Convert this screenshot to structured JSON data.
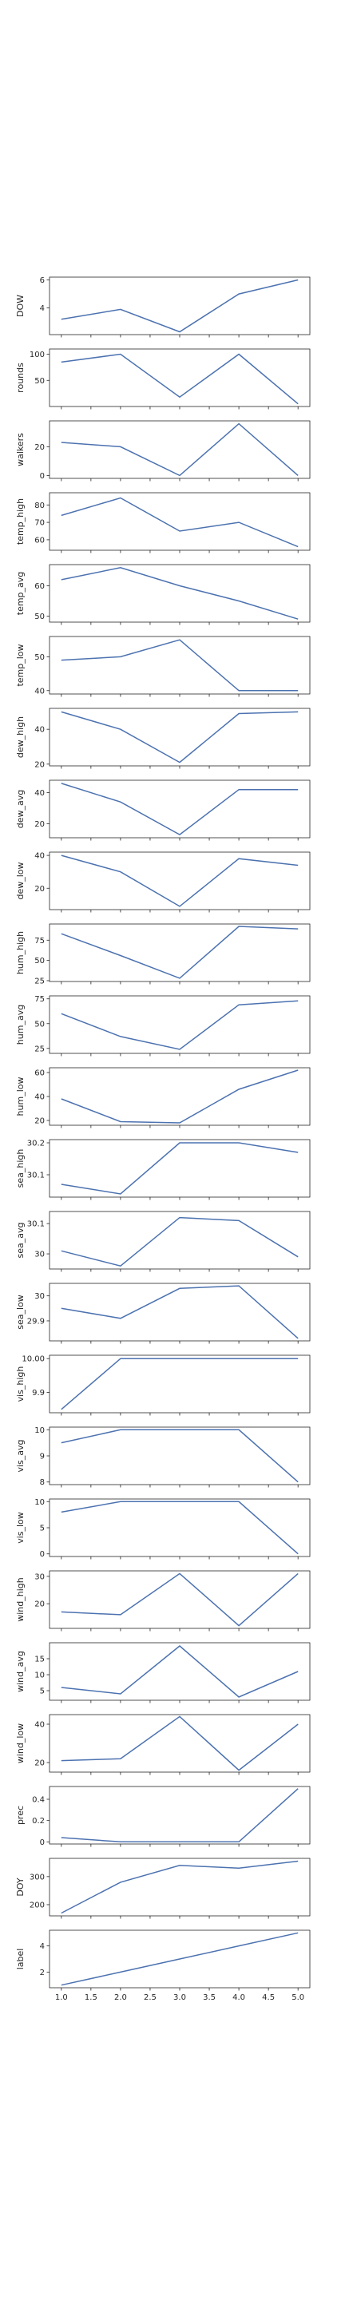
{
  "chart_data": [
    {
      "type": "line",
      "ylabel": "DOW",
      "x": [
        1,
        2,
        3,
        4,
        5
      ],
      "y": [
        3.2,
        3.9,
        2.3,
        5.0,
        6.0
      ],
      "xlim": [
        0.8,
        5.2
      ],
      "ylim": [
        2.1,
        6.2
      ],
      "yticks": [
        4,
        6
      ],
      "x_ticklabels_visible": false
    },
    {
      "type": "line",
      "ylabel": "rounds",
      "x": [
        1,
        2,
        3,
        4,
        5
      ],
      "y": [
        85,
        100,
        18,
        100,
        5
      ],
      "xlim": [
        0.8,
        5.2
      ],
      "ylim": [
        0,
        110
      ],
      "yticks": [
        50,
        100
      ],
      "x_ticklabels_visible": false
    },
    {
      "type": "line",
      "ylabel": "walkers",
      "x": [
        1,
        2,
        3,
        4,
        5
      ],
      "y": [
        23,
        20,
        0,
        36,
        0
      ],
      "xlim": [
        0.8,
        5.2
      ],
      "ylim": [
        -2,
        38
      ],
      "yticks": [
        0,
        20
      ],
      "x_ticklabels_visible": false
    },
    {
      "type": "line",
      "ylabel": "temp_high",
      "x": [
        1,
        2,
        3,
        4,
        5
      ],
      "y": [
        74,
        84,
        65,
        70,
        56
      ],
      "xlim": [
        0.8,
        5.2
      ],
      "ylim": [
        54,
        87
      ],
      "yticks": [
        60,
        70,
        80
      ],
      "x_ticklabels_visible": false
    },
    {
      "type": "line",
      "ylabel": "temp_avg",
      "x": [
        1,
        2,
        3,
        4,
        5
      ],
      "y": [
        62,
        66,
        60,
        55,
        49
      ],
      "xlim": [
        0.8,
        5.2
      ],
      "ylim": [
        48,
        67
      ],
      "yticks": [
        50,
        60
      ],
      "x_ticklabels_visible": false
    },
    {
      "type": "line",
      "ylabel": "temp_low",
      "x": [
        1,
        2,
        3,
        4,
        5
      ],
      "y": [
        49,
        50,
        55,
        40,
        40
      ],
      "xlim": [
        0.8,
        5.2
      ],
      "ylim": [
        39,
        56
      ],
      "yticks": [
        40,
        50
      ],
      "x_ticklabels_visible": false
    },
    {
      "type": "line",
      "ylabel": "dew_high",
      "x": [
        1,
        2,
        3,
        4,
        5
      ],
      "y": [
        50,
        40,
        21,
        49,
        50
      ],
      "xlim": [
        0.8,
        5.2
      ],
      "ylim": [
        19,
        52
      ],
      "yticks": [
        20,
        40
      ],
      "x_ticklabels_visible": false
    },
    {
      "type": "line",
      "ylabel": "dew_avg",
      "x": [
        1,
        2,
        3,
        4,
        5
      ],
      "y": [
        46,
        34,
        13,
        42,
        42
      ],
      "xlim": [
        0.8,
        5.2
      ],
      "ylim": [
        11,
        48
      ],
      "yticks": [
        20,
        40
      ],
      "x_ticklabels_visible": false
    },
    {
      "type": "line",
      "ylabel": "dew_low",
      "x": [
        1,
        2,
        3,
        4,
        5
      ],
      "y": [
        40,
        30,
        9,
        38,
        34
      ],
      "xlim": [
        0.8,
        5.2
      ],
      "ylim": [
        7,
        42
      ],
      "yticks": [
        20,
        40
      ],
      "x_ticklabels_visible": false
    },
    {
      "type": "line",
      "ylabel": "hum_high",
      "x": [
        1,
        2,
        3,
        4,
        5
      ],
      "y": [
        83,
        56,
        28,
        92,
        89
      ],
      "xlim": [
        0.8,
        5.2
      ],
      "ylim": [
        24,
        95
      ],
      "yticks": [
        25,
        50,
        75
      ],
      "x_ticklabels_visible": false
    },
    {
      "type": "line",
      "ylabel": "hum_avg",
      "x": [
        1,
        2,
        3,
        4,
        5
      ],
      "y": [
        60,
        37,
        24,
        69,
        73
      ],
      "xlim": [
        0.8,
        5.2
      ],
      "ylim": [
        20,
        78
      ],
      "yticks": [
        25,
        50,
        75
      ],
      "x_ticklabels_visible": false
    },
    {
      "type": "line",
      "ylabel": "hum_low",
      "x": [
        1,
        2,
        3,
        4,
        5
      ],
      "y": [
        38,
        19,
        18,
        46,
        62
      ],
      "xlim": [
        0.8,
        5.2
      ],
      "ylim": [
        16,
        64
      ],
      "yticks": [
        20,
        40,
        60
      ],
      "x_ticklabels_visible": false
    },
    {
      "type": "line",
      "ylabel": "sea_high",
      "x": [
        1,
        2,
        3,
        4,
        5
      ],
      "y": [
        30.07,
        30.04,
        30.2,
        30.2,
        30.17
      ],
      "xlim": [
        0.8,
        5.2
      ],
      "ylim": [
        30.03,
        30.21
      ],
      "yticks": [
        30.1,
        30.2
      ],
      "x_ticklabels_visible": false
    },
    {
      "type": "line",
      "ylabel": "sea_avg",
      "x": [
        1,
        2,
        3,
        4,
        5
      ],
      "y": [
        30.01,
        29.96,
        30.12,
        30.11,
        29.99
      ],
      "xlim": [
        0.8,
        5.2
      ],
      "ylim": [
        29.95,
        30.14
      ],
      "yticks": [
        30.0,
        30.1
      ],
      "x_ticklabels_visible": false
    },
    {
      "type": "line",
      "ylabel": "sea_low",
      "x": [
        1,
        2,
        3,
        4,
        5
      ],
      "y": [
        29.95,
        29.91,
        30.03,
        30.04,
        29.83
      ],
      "xlim": [
        0.8,
        5.2
      ],
      "ylim": [
        29.82,
        30.05
      ],
      "yticks": [
        29.9,
        30.0
      ],
      "x_ticklabels_visible": false
    },
    {
      "type": "line",
      "ylabel": "vis_high",
      "x": [
        1,
        2,
        3,
        4,
        5
      ],
      "y": [
        9.85,
        10,
        10,
        10,
        10
      ],
      "xlim": [
        0.8,
        5.2
      ],
      "ylim": [
        9.84,
        10.01
      ],
      "yticks": [
        9.9,
        10.0
      ],
      "ytick_labels": [
        "9.9",
        "10.00"
      ],
      "x_ticklabels_visible": false
    },
    {
      "type": "line",
      "ylabel": "vis_avg",
      "x": [
        1,
        2,
        3,
        4,
        5
      ],
      "y": [
        9.5,
        10,
        10,
        10,
        8
      ],
      "xlim": [
        0.8,
        5.2
      ],
      "ylim": [
        7.9,
        10.1
      ],
      "yticks": [
        8,
        9,
        10
      ],
      "x_ticklabels_visible": false
    },
    {
      "type": "line",
      "ylabel": "vis_low",
      "x": [
        1,
        2,
        3,
        4,
        5
      ],
      "y": [
        8,
        10,
        10,
        10,
        0
      ],
      "xlim": [
        0.8,
        5.2
      ],
      "ylim": [
        -0.5,
        10.5
      ],
      "yticks": [
        0,
        5,
        10
      ],
      "x_ticklabels_visible": false
    },
    {
      "type": "line",
      "ylabel": "wind_high",
      "x": [
        1,
        2,
        3,
        4,
        5
      ],
      "y": [
        17,
        16,
        31,
        12,
        31
      ],
      "xlim": [
        0.8,
        5.2
      ],
      "ylim": [
        11,
        32
      ],
      "yticks": [
        20,
        30
      ],
      "x_ticklabels_visible": false
    },
    {
      "type": "line",
      "ylabel": "wind_avg",
      "x": [
        1,
        2,
        3,
        4,
        5
      ],
      "y": [
        6,
        4,
        19,
        3,
        11
      ],
      "xlim": [
        0.8,
        5.2
      ],
      "ylim": [
        2,
        20
      ],
      "yticks": [
        5,
        10,
        15
      ],
      "x_ticklabels_visible": false
    },
    {
      "type": "line",
      "ylabel": "wind_low",
      "x": [
        1,
        2,
        3,
        4,
        5
      ],
      "y": [
        21,
        22,
        44,
        16,
        40
      ],
      "xlim": [
        0.8,
        5.2
      ],
      "ylim": [
        15,
        45
      ],
      "yticks": [
        20,
        40
      ],
      "x_ticklabels_visible": false
    },
    {
      "type": "line",
      "ylabel": "prec",
      "x": [
        1,
        2,
        3,
        4,
        5
      ],
      "y": [
        0.04,
        0,
        0,
        0,
        0.5
      ],
      "xlim": [
        0.8,
        5.2
      ],
      "ylim": [
        -0.02,
        0.52
      ],
      "yticks": [
        0.0,
        0.2,
        0.4
      ],
      "x_ticklabels_visible": false
    },
    {
      "type": "line",
      "ylabel": "DOY",
      "x": [
        1,
        2,
        3,
        4,
        5
      ],
      "y": [
        170,
        280,
        340,
        330,
        355
      ],
      "xlim": [
        0.8,
        5.2
      ],
      "ylim": [
        160,
        365
      ],
      "yticks": [
        200,
        300
      ],
      "x_ticklabels_visible": false
    },
    {
      "type": "line",
      "ylabel": "label",
      "x": [
        1,
        2,
        3,
        4,
        5
      ],
      "y": [
        1,
        2,
        3,
        4,
        5
      ],
      "xlim": [
        0.8,
        5.2
      ],
      "ylim": [
        0.8,
        5.2
      ],
      "yticks": [
        2,
        4
      ],
      "xticks": [
        1.0,
        1.5,
        2.0,
        2.5,
        3.0,
        3.5,
        4.0,
        4.5,
        5.0
      ],
      "x_ticklabels_visible": true
    }
  ],
  "style": {
    "line_color": "#4c72b0",
    "axis_color": "#262626"
  }
}
